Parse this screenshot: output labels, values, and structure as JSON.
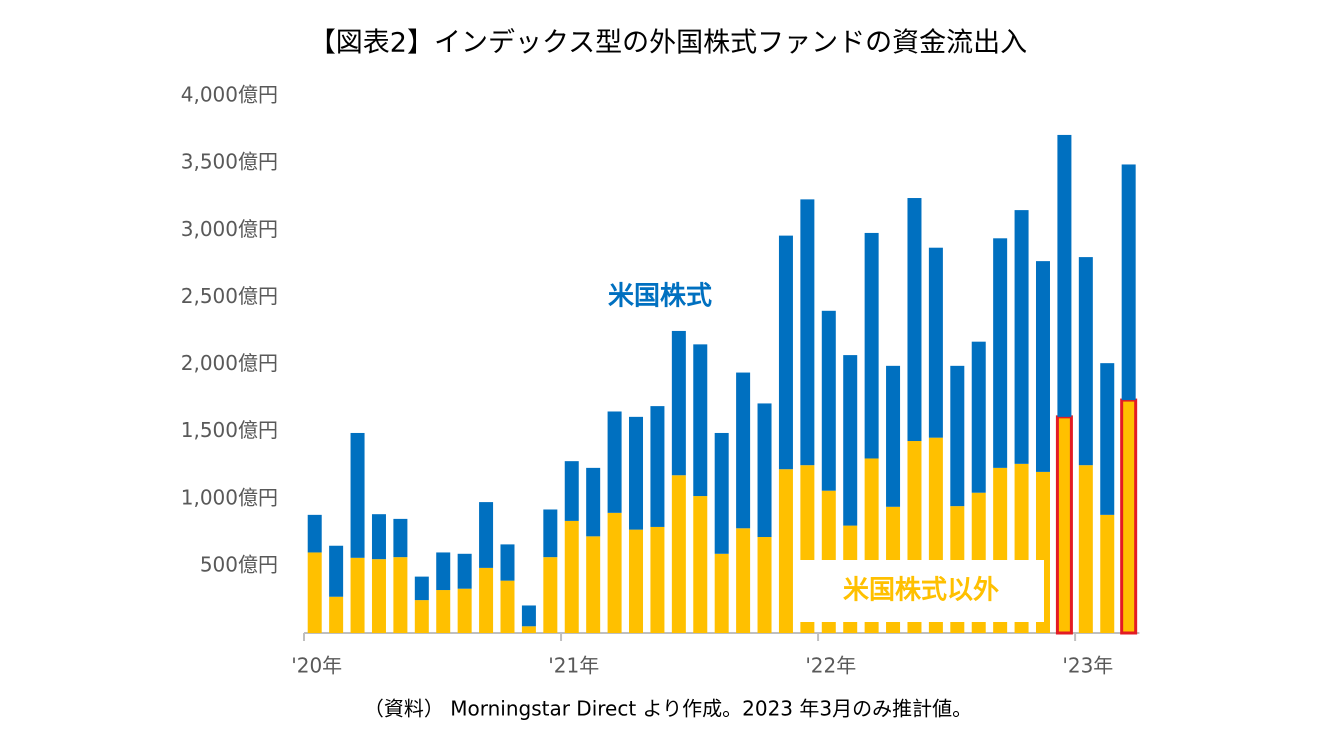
{
  "chart_data": {
    "type": "stacked_bar",
    "title": "【図表2】インデックス型の外国株式ファンドの資金流出入",
    "categories": [
      "'20年",
      null,
      null,
      null,
      null,
      null,
      null,
      null,
      null,
      null,
      null,
      null,
      "'21年",
      null,
      null,
      null,
      null,
      null,
      null,
      null,
      null,
      null,
      null,
      null,
      "'22年",
      null,
      null,
      null,
      null,
      null,
      null,
      null,
      null,
      null,
      null,
      null,
      "'23年",
      null,
      null
    ],
    "series": [
      {
        "name": "米国株式以外",
        "color": "#ffc000",
        "values": [
          600,
          270,
          560,
          550,
          565,
          245,
          320,
          330,
          485,
          390,
          50,
          565,
          835,
          720,
          895,
          770,
          790,
          1175,
          1020,
          590,
          780,
          715,
          1220,
          1250,
          1060,
          800,
          1300,
          940,
          1430,
          1455,
          945,
          1045,
          1230,
          1260,
          1200,
          1610,
          1250,
          880,
          1735
        ]
      },
      {
        "name": "米国株式",
        "color": "#0070c0",
        "values": [
          280,
          380,
          930,
          335,
          285,
          175,
          280,
          260,
          490,
          270,
          155,
          355,
          445,
          510,
          755,
          840,
          900,
          1075,
          1130,
          900,
          1160,
          995,
          1740,
          1980,
          1340,
          1270,
          1680,
          1050,
          1810,
          1415,
          1045,
          1125,
          1710,
          1890,
          1570,
          2100,
          1550,
          1130,
          1755
        ]
      }
    ],
    "highlight": {
      "indices": [
        35,
        38
      ],
      "color": "#e31b23"
    },
    "ylim": [
      0,
      4000
    ],
    "yticks": [
      {
        "value": 500,
        "label": "500億円"
      },
      {
        "value": 1000,
        "label": "1,000億円"
      },
      {
        "value": 1500,
        "label": "1,500億円"
      },
      {
        "value": 2000,
        "label": "2,000億円"
      },
      {
        "value": 2500,
        "label": "2,500億円"
      },
      {
        "value": 3000,
        "label": "3,000億円"
      },
      {
        "value": 3500,
        "label": "3,500億円"
      },
      {
        "value": 4000,
        "label": "4,000億円"
      }
    ],
    "grid": false,
    "source": "（資料） Morningstar Direct より作成。2023 年3月のみ推計値。"
  }
}
